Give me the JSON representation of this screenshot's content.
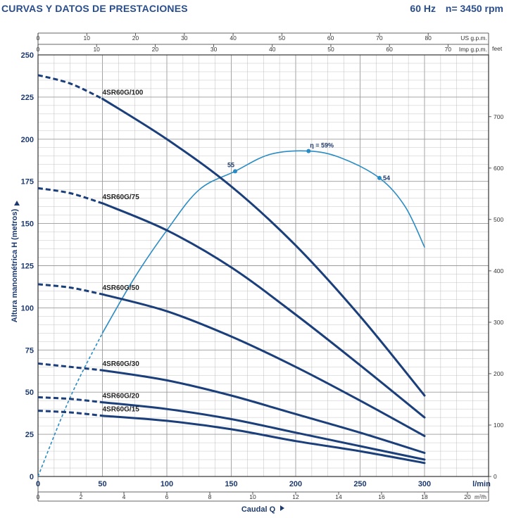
{
  "header": {
    "title": "CURVAS Y DATOS DE PRESTACIONES",
    "frequency": "60 Hz",
    "speed": "n= 3450 rpm"
  },
  "colors": {
    "pump_curve": "#1b3f7a",
    "efficiency_curve": "#2a8cc4",
    "grid": "#bdbdbd",
    "axis_text": "#1d3a6e"
  },
  "chart_data": {
    "type": "line",
    "xlabel": "Caudal Q",
    "ylabel": "Altura manométrica H (metros)",
    "x_unit": "l/min",
    "xlim": [
      0,
      300
    ],
    "ylim": [
      0,
      250
    ],
    "x_ticks": [
      0,
      50,
      100,
      150,
      200,
      250,
      300
    ],
    "y_ticks": [
      0,
      25,
      50,
      75,
      100,
      125,
      150,
      175,
      200,
      225,
      250
    ],
    "secondary_axes": {
      "top_us": {
        "label": "US g.p.m.",
        "ticks": [
          0,
          10,
          20,
          30,
          40,
          50,
          60,
          70,
          80
        ],
        "per_lmin": 0.264172
      },
      "top_imp": {
        "label": "Imp g.p.m.",
        "ticks": [
          0,
          10,
          20,
          30,
          40,
          50,
          60,
          70
        ],
        "per_lmin": 0.219969
      },
      "bottom_m3h": {
        "label": "m³/h",
        "ticks": [
          0,
          2,
          4,
          6,
          8,
          10,
          12,
          14,
          16,
          18,
          20
        ],
        "per_lmin": 0.06
      },
      "right_feet": {
        "label": "feet",
        "ticks": [
          0,
          100,
          200,
          300,
          400,
          500,
          600,
          700
        ],
        "per_m": 3.28084
      }
    },
    "dashed_until_x": 50,
    "series": [
      {
        "name": "4SR60G/100",
        "x": [
          0,
          25,
          50,
          100,
          150,
          200,
          250,
          300
        ],
        "y": [
          238,
          233,
          224,
          200,
          172,
          137,
          95,
          48
        ]
      },
      {
        "name": "4SR60G/75",
        "x": [
          0,
          25,
          50,
          100,
          150,
          200,
          250,
          300
        ],
        "y": [
          171,
          168,
          162,
          146,
          124,
          96,
          66,
          35
        ]
      },
      {
        "name": "4SR60G/50",
        "x": [
          0,
          25,
          50,
          100,
          150,
          200,
          250,
          300
        ],
        "y": [
          114,
          112,
          108,
          98,
          83,
          65,
          45,
          24
        ]
      },
      {
        "name": "4SR60G/30",
        "x": [
          0,
          25,
          50,
          100,
          150,
          200,
          250,
          300
        ],
        "y": [
          67,
          65,
          63,
          57,
          48,
          37,
          26,
          14
        ]
      },
      {
        "name": "4SR60G/20",
        "x": [
          0,
          25,
          50,
          100,
          150,
          200,
          250,
          300
        ],
        "y": [
          47,
          46,
          44,
          40,
          34,
          26,
          18,
          10
        ]
      },
      {
        "name": "4SR60G/15",
        "x": [
          0,
          25,
          50,
          100,
          150,
          200,
          250,
          300
        ],
        "y": [
          39,
          38,
          36,
          33,
          28,
          21,
          15,
          8
        ]
      }
    ],
    "efficiency": {
      "x": [
        0,
        25,
        50,
        75,
        100,
        125,
        153,
        180,
        210,
        235,
        265,
        285,
        300
      ],
      "y": [
        0,
        47,
        85,
        118,
        146,
        170,
        181,
        191,
        193,
        189,
        177,
        160,
        136
      ],
      "labels": [
        {
          "text": "55",
          "x": 153
        },
        {
          "text": "η = 59%",
          "x": 210
        },
        {
          "text": "54",
          "x": 265
        }
      ],
      "dashed_until_x": 50
    }
  }
}
